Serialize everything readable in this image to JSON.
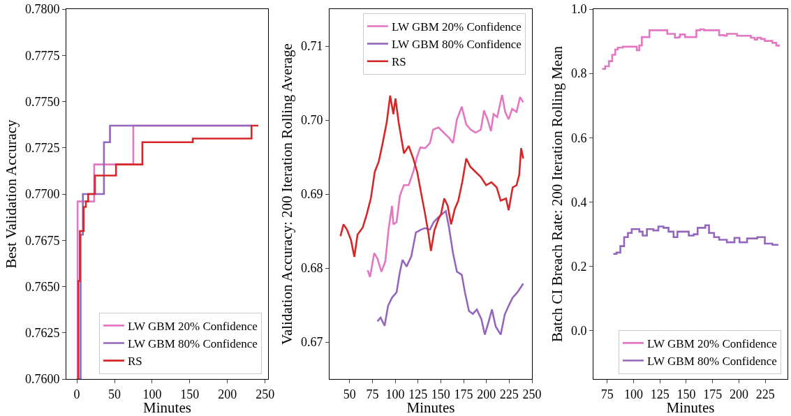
{
  "chart_data": [
    {
      "type": "step",
      "xlabel": "Minutes",
      "ylabel": "Best Validation Accuracy",
      "xlim": [
        -14,
        254
      ],
      "xticks": [
        0,
        50,
        100,
        150,
        200,
        250
      ],
      "ylim": [
        0.76,
        0.78
      ],
      "yticks": [
        {
          "value": 0.76,
          "label": "0.7600"
        },
        {
          "value": 0.7625,
          "label": "0.7625"
        },
        {
          "value": 0.765,
          "label": "0.7650"
        },
        {
          "value": 0.7675,
          "label": "0.7675"
        },
        {
          "value": 0.77,
          "label": "0.7700"
        },
        {
          "value": 0.7725,
          "label": "0.7725"
        },
        {
          "value": 0.775,
          "label": "0.7750"
        },
        {
          "value": 0.7775,
          "label": "0.7775"
        },
        {
          "value": 0.78,
          "label": "0.7800"
        }
      ],
      "legend": "bottom right",
      "series": [
        {
          "name": "LW GBM 20% Confidence",
          "color": "#e377c2",
          "x": [
            0,
            1,
            23,
            75,
            232
          ],
          "values": [
            0.76,
            0.7696,
            0.7716,
            0.7737,
            0.7737
          ]
        },
        {
          "name": "LW GBM 80% Confidence",
          "color": "#9467bd",
          "x": [
            0,
            5,
            8,
            36,
            44,
            232
          ],
          "values": [
            0.76,
            0.7678,
            0.77,
            0.7728,
            0.7737,
            0.7737
          ]
        },
        {
          "name": "RS",
          "color": "#d62728",
          "x": [
            0,
            2,
            4,
            9,
            12,
            15,
            24,
            52,
            87,
            154,
            232,
            241
          ],
          "values": [
            0.76,
            0.7653,
            0.768,
            0.7693,
            0.7696,
            0.77,
            0.771,
            0.7716,
            0.7728,
            0.773,
            0.7737,
            0.7737
          ]
        }
      ]
    },
    {
      "type": "line",
      "xlabel": "Minutes",
      "ylabel": "Validation Accuracy: 200 Iteration Rolling Average",
      "xlim": [
        28,
        250
      ],
      "xticks": [
        50,
        75,
        100,
        125,
        150,
        175,
        200,
        225,
        250
      ],
      "ylim": [
        0.665,
        0.715
      ],
      "yticks": [
        {
          "value": 0.67,
          "label": "0.67"
        },
        {
          "value": 0.68,
          "label": "0.68"
        },
        {
          "value": 0.69,
          "label": "0.69"
        },
        {
          "value": 0.7,
          "label": "0.70"
        },
        {
          "value": 0.71,
          "label": "0.71"
        }
      ],
      "legend": "top right",
      "series": [
        {
          "name": "LW GBM 20% Confidence",
          "color": "#e377c2",
          "x": [
            69.8,
            72.4,
            77,
            80.5,
            84.9,
            89.2,
            92.7,
            96.5,
            98,
            101.5,
            105.2,
            109.6,
            114.8,
            119.8,
            124.1,
            127.6,
            132.8,
            138.1,
            141.6,
            147.4,
            153.2,
            159,
            163.4,
            167.7,
            173,
            177.9,
            182.8,
            188.1,
            193.9,
            197.4,
            201.2,
            205,
            207.8,
            211.9,
            217.2,
            220.6,
            224.4,
            228.2,
            233.1,
            236.9,
            240.4
          ],
          "values": [
            0.6797,
            0.6788,
            0.682,
            0.6813,
            0.6795,
            0.6809,
            0.6852,
            0.6884,
            0.6859,
            0.6862,
            0.6898,
            0.6912,
            0.6912,
            0.693,
            0.6951,
            0.6963,
            0.6962,
            0.6969,
            0.6987,
            0.699,
            0.6983,
            0.6976,
            0.6969,
            0.7001,
            0.7018,
            0.6994,
            0.6987,
            0.6983,
            0.6987,
            0.7013,
            0.7001,
            0.6985,
            0.7008,
            0.7004,
            0.7034,
            0.7011,
            0.7001,
            0.7015,
            0.7011,
            0.7031,
            0.7024
          ]
        },
        {
          "name": "LW GBM 80% Confidence",
          "color": "#9467bd",
          "x": [
            80.5,
            84,
            88.4,
            92.2,
            96.5,
            101.5,
            105.2,
            108.1,
            112.5,
            117.7,
            122.7,
            128.5,
            132.8,
            138.1,
            142.2,
            146.8,
            151.7,
            155.5,
            159,
            163.4,
            167.7,
            173,
            176.5,
            180.9,
            185.2,
            189.5,
            194.5,
            198.3,
            202.6,
            206.1,
            210.2,
            215.7,
            220.1,
            224.4,
            228.8,
            234,
            240.4
          ],
          "values": [
            0.6728,
            0.6733,
            0.6722,
            0.6749,
            0.676,
            0.6767,
            0.6795,
            0.6811,
            0.6802,
            0.6816,
            0.6848,
            0.6852,
            0.6854,
            0.6852,
            0.6862,
            0.6868,
            0.6873,
            0.6877,
            0.6855,
            0.682,
            0.6795,
            0.6791,
            0.6767,
            0.6742,
            0.6738,
            0.6744,
            0.6731,
            0.671,
            0.6728,
            0.6744,
            0.6721,
            0.671,
            0.6737,
            0.6749,
            0.676,
            0.6767,
            0.6779
          ]
        },
        {
          "name": "RS",
          "color": "#d62728",
          "x": [
            40,
            43.3,
            47.1,
            51.5,
            55.2,
            58.7,
            64.5,
            68.9,
            73.3,
            77.6,
            82,
            86.3,
            90.7,
            94.5,
            98,
            100.3,
            103.8,
            109.6,
            114.8,
            119.8,
            124.1,
            128.5,
            132.8,
            136.3,
            139.2,
            143,
            147.4,
            150.3,
            153.8,
            157.6,
            161.3,
            165.4,
            169.2,
            173.5,
            177.9,
            182.3,
            188.1,
            193.9,
            199.7,
            205.5,
            211.3,
            215.7,
            221.5,
            224.4,
            228.8,
            233.1,
            236,
            238.1,
            240.4
          ],
          "values": [
            0.6843,
            0.6859,
            0.6852,
            0.6838,
            0.6815,
            0.6845,
            0.6855,
            0.6873,
            0.6894,
            0.693,
            0.6944,
            0.6969,
            0.6997,
            0.7033,
            0.7008,
            0.7029,
            0.6997,
            0.6955,
            0.6965,
            0.6948,
            0.693,
            0.6901,
            0.6873,
            0.6848,
            0.6823,
            0.6851,
            0.6866,
            0.6873,
            0.6894,
            0.6884,
            0.6859,
            0.688,
            0.6891,
            0.6916,
            0.6948,
            0.6937,
            0.693,
            0.6923,
            0.6912,
            0.6916,
            0.6909,
            0.6891,
            0.6894,
            0.6878,
            0.6909,
            0.6912,
            0.6926,
            0.6962,
            0.6948
          ]
        }
      ]
    },
    {
      "type": "step",
      "xlabel": "Minutes",
      "ylabel": "Batch CI Breach Rate: 200 Iteration Rolling Mean",
      "xlim": [
        62,
        246
      ],
      "xticks": [
        75,
        100,
        125,
        150,
        175,
        200,
        225
      ],
      "ylim": [
        -0.15,
        1.0
      ],
      "yticks": [
        {
          "value": 0,
          "label": "0.0"
        },
        {
          "value": 0.2,
          "label": "0.2"
        },
        {
          "value": 0.4,
          "label": "0.4"
        },
        {
          "value": 0.6,
          "label": "0.6"
        },
        {
          "value": 0.8,
          "label": "0.8"
        },
        {
          "value": 1,
          "label": "1.0"
        }
      ],
      "legend": "bottom right",
      "series": [
        {
          "name": "LW GBM 20% Confidence",
          "color": "#e377c2",
          "x": [
            70.2,
            73.1,
            76.7,
            79.8,
            82.7,
            85.1,
            89.9,
            97.1,
            100.7,
            103.1,
            105.5,
            107.9,
            112.7,
            115.1,
            128.4,
            132,
            136.8,
            139.2,
            142.8,
            144,
            148.8,
            156,
            159.6,
            163.2,
            166.8,
            177.6,
            181.2,
            186.1,
            188.5,
            196.9,
            198.1,
            207.7,
            211.3,
            214.9,
            217.3,
            220.9,
            224.5,
            228.1,
            231.7,
            235.3,
            237.7
          ],
          "values": [
            0.814,
            0.822,
            0.838,
            0.858,
            0.874,
            0.88,
            0.883,
            0.883,
            0.883,
            0.872,
            0.887,
            0.913,
            0.913,
            0.934,
            0.934,
            0.923,
            0.923,
            0.911,
            0.913,
            0.921,
            0.913,
            0.913,
            0.934,
            0.937,
            0.934,
            0.934,
            0.919,
            0.917,
            0.923,
            0.923,
            0.917,
            0.917,
            0.911,
            0.905,
            0.911,
            0.907,
            0.901,
            0.901,
            0.895,
            0.887,
            0.883
          ]
        },
        {
          "name": "LW GBM 80% Confidence",
          "color": "#9467bd",
          "x": [
            80.8,
            83.9,
            87.5,
            91.1,
            94.7,
            98.3,
            101.9,
            105.5,
            108.7,
            112.7,
            118.8,
            123.6,
            128.4,
            133.2,
            138,
            141.6,
            147.6,
            152.4,
            157.2,
            160.8,
            164.4,
            168,
            171.6,
            176.4,
            181.2,
            188.5,
            195.7,
            200.5,
            207.7,
            217.3,
            224.5,
            231.7,
            236.5
          ],
          "values": [
            0.239,
            0.243,
            0.263,
            0.291,
            0.304,
            0.316,
            0.316,
            0.308,
            0.296,
            0.316,
            0.312,
            0.324,
            0.32,
            0.308,
            0.291,
            0.308,
            0.308,
            0.296,
            0.3,
            0.32,
            0.32,
            0.328,
            0.304,
            0.291,
            0.283,
            0.275,
            0.289,
            0.275,
            0.287,
            0.291,
            0.271,
            0.267,
            0.27
          ]
        }
      ]
    }
  ]
}
